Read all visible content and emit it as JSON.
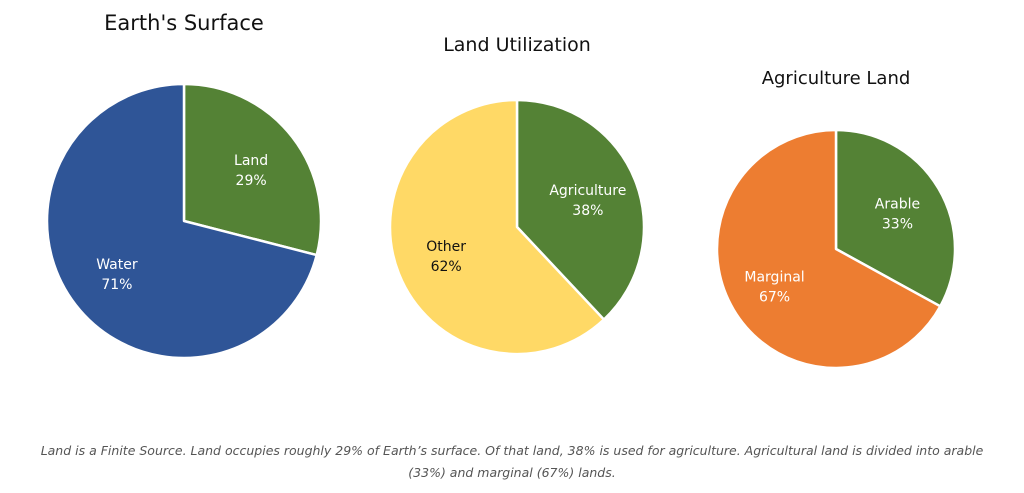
{
  "chart_data": [
    {
      "type": "pie",
      "title": "Earth's Surface",
      "slices": [
        {
          "label": "Land",
          "value": 29,
          "value_label": "29%",
          "color": "#548235"
        },
        {
          "label": "Water",
          "value": 71,
          "value_label": "71%",
          "color": "#2F5597"
        }
      ],
      "label_color": "#ffffff"
    },
    {
      "type": "pie",
      "title": "Land Utilization",
      "slices": [
        {
          "label": "Agriculture",
          "value": 38,
          "value_label": "38%",
          "color": "#548235"
        },
        {
          "label": "Other",
          "value": 62,
          "value_label": "62%",
          "color": "#FFD966"
        }
      ],
      "label_color": [
        "#ffffff",
        "#111111"
      ]
    },
    {
      "type": "pie",
      "title": "Agriculture Land",
      "slices": [
        {
          "label": "Arable",
          "value": 33,
          "value_label": "33%",
          "color": "#548235"
        },
        {
          "label": "Marginal",
          "value": 67,
          "value_label": "67%",
          "color": "#ED7D31"
        }
      ],
      "label_color": "#ffffff"
    }
  ],
  "caption": "Land is a Finite Source. Land occupies roughly 29% of Earth’s surface. Of that land, 38% is used for agriculture. Agricultural land is divided into arable (33%) and marginal (67%) lands."
}
